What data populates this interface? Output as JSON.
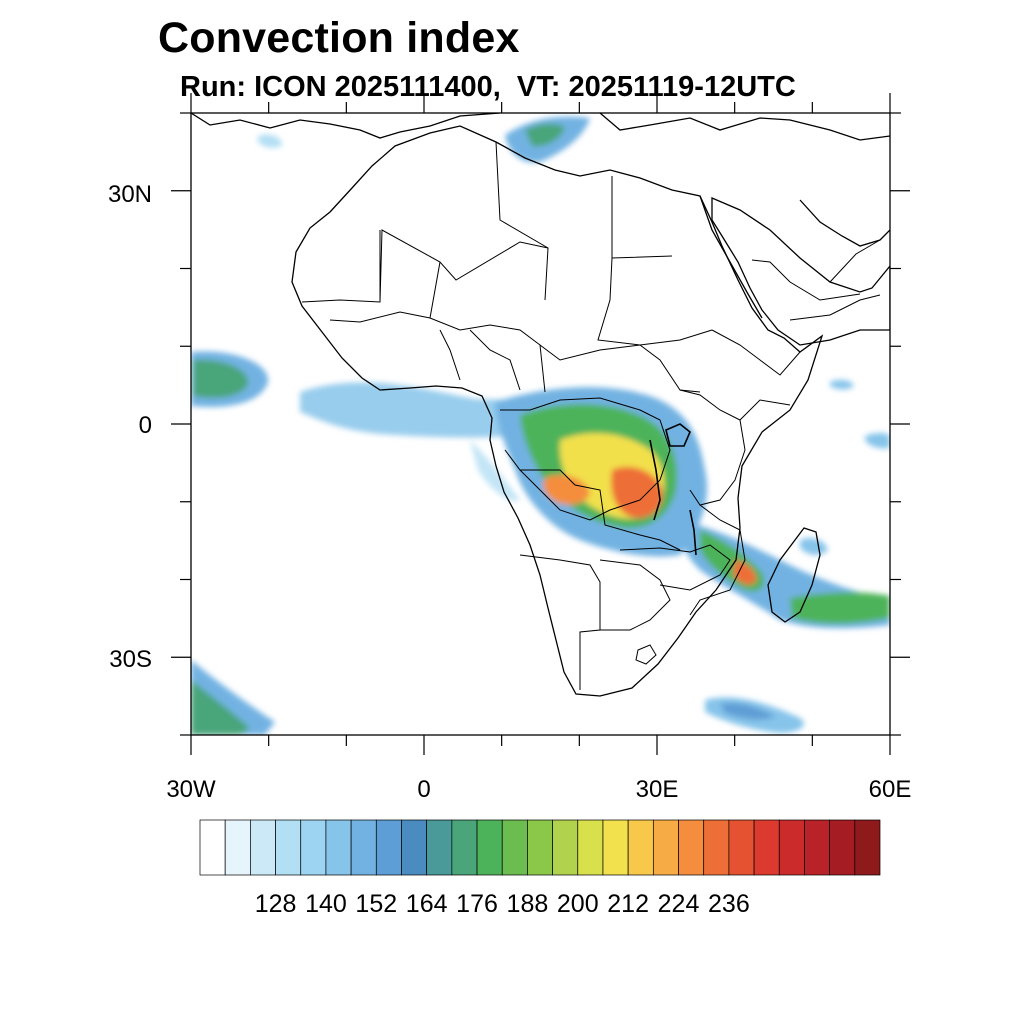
{
  "map": {
    "title": "Convection index",
    "subtitle": "Run: ICON 2025111400,  VT: 20251119-12UTC",
    "lon_ticks": [
      {
        "label": "30W",
        "lon": -30
      },
      {
        "label": "0",
        "lon": 0
      },
      {
        "label": "30E",
        "lon": 30
      },
      {
        "label": "60E",
        "lon": 60
      }
    ],
    "lat_ticks": [
      {
        "label": "30N",
        "lat": 30
      },
      {
        "label": "0",
        "lat": 0
      },
      {
        "label": "30S",
        "lat": -30
      }
    ],
    "extent": {
      "lon_min": -30,
      "lon_max": 60,
      "lat_min": -40,
      "lat_max": 40
    },
    "colorbar": {
      "colors": [
        "#ffffff",
        "#e6f4fb",
        "#cce9f7",
        "#b3dff4",
        "#9dd4f2",
        "#86c4ea",
        "#72b2e2",
        "#5e9ed6",
        "#4a8cbf",
        "#4a9a9a",
        "#4aa57a",
        "#4db35a",
        "#6bbd4f",
        "#8bc84a",
        "#b0d24c",
        "#d8e04c",
        "#f2e04c",
        "#f8c84a",
        "#f7ab45",
        "#f48e3e",
        "#ee6e37",
        "#e55231",
        "#dc3a2f",
        "#cc2b2c",
        "#b82228",
        "#a61c23",
        "#8e1a1c"
      ],
      "labels": [
        "128",
        "140",
        "152",
        "164",
        "176",
        "188",
        "200",
        "212",
        "224",
        "236"
      ],
      "label_positions": [
        3,
        5,
        7,
        9,
        11,
        13,
        15,
        17,
        19,
        21
      ]
    }
  }
}
